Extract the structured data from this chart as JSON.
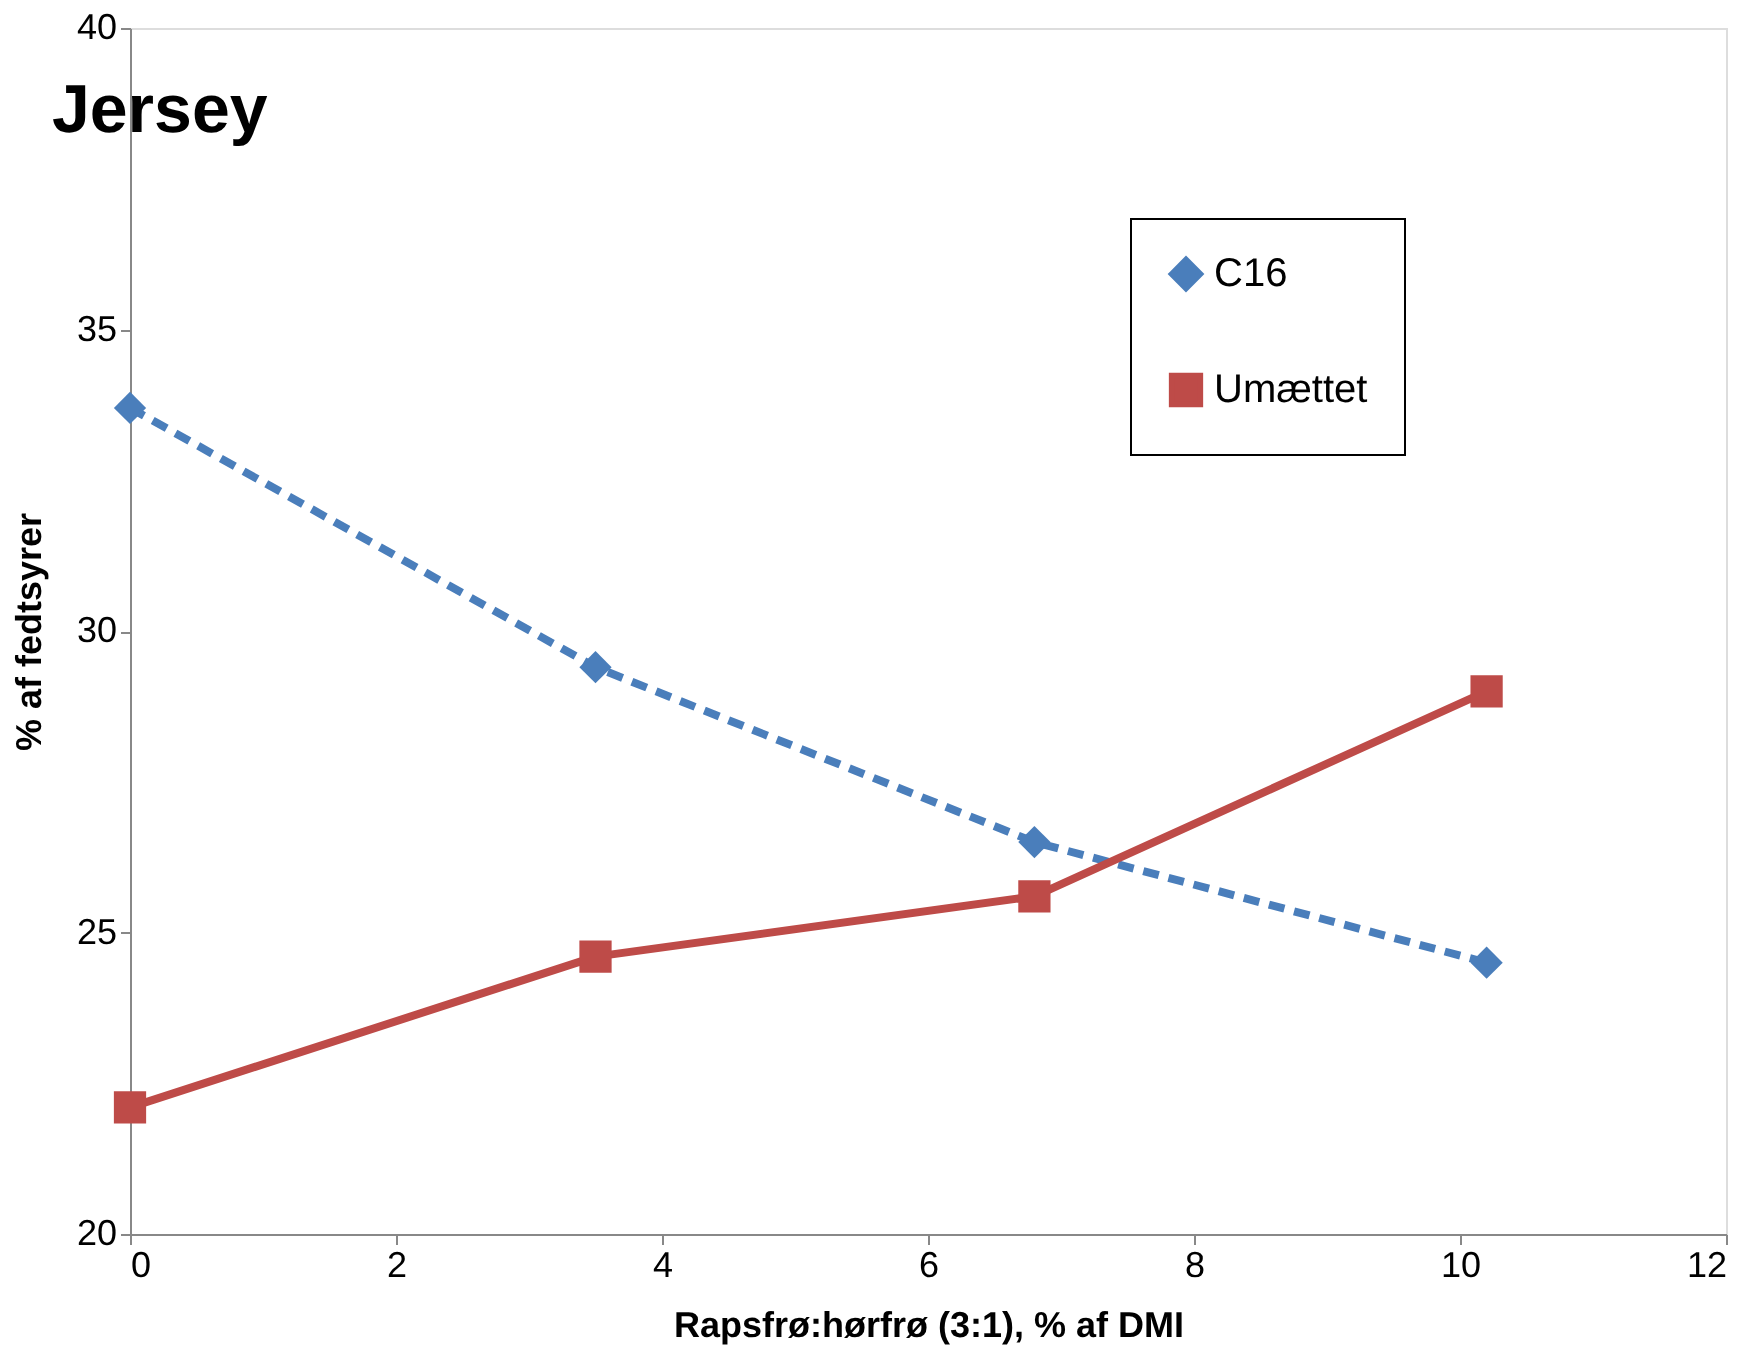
{
  "chart_data": {
    "type": "line",
    "title": "Jersey",
    "xlabel": "Rapsfrø:hørfrø  (3:1), % af DMI",
    "ylabel": "% af fedtsyrer",
    "x": [
      0,
      3.5,
      6.8,
      10.2
    ],
    "series": [
      {
        "name": "C16",
        "color": "#4a7ebb",
        "values": [
          33.7,
          29.4,
          26.5,
          24.5
        ],
        "marker": "diamond",
        "line_style": "dashed"
      },
      {
        "name": "Umættet",
        "color": "#be4b48",
        "values": [
          22.1,
          24.6,
          25.6,
          29.0
        ],
        "marker": "square",
        "line_style": "solid"
      }
    ],
    "xlim": [
      0,
      12
    ],
    "xticks": [
      0,
      2,
      4,
      6,
      8,
      10,
      12
    ],
    "ylim": [
      20,
      40
    ],
    "yticks": [
      20,
      25,
      30,
      35,
      40
    ],
    "grid": false,
    "legend": "top right"
  }
}
